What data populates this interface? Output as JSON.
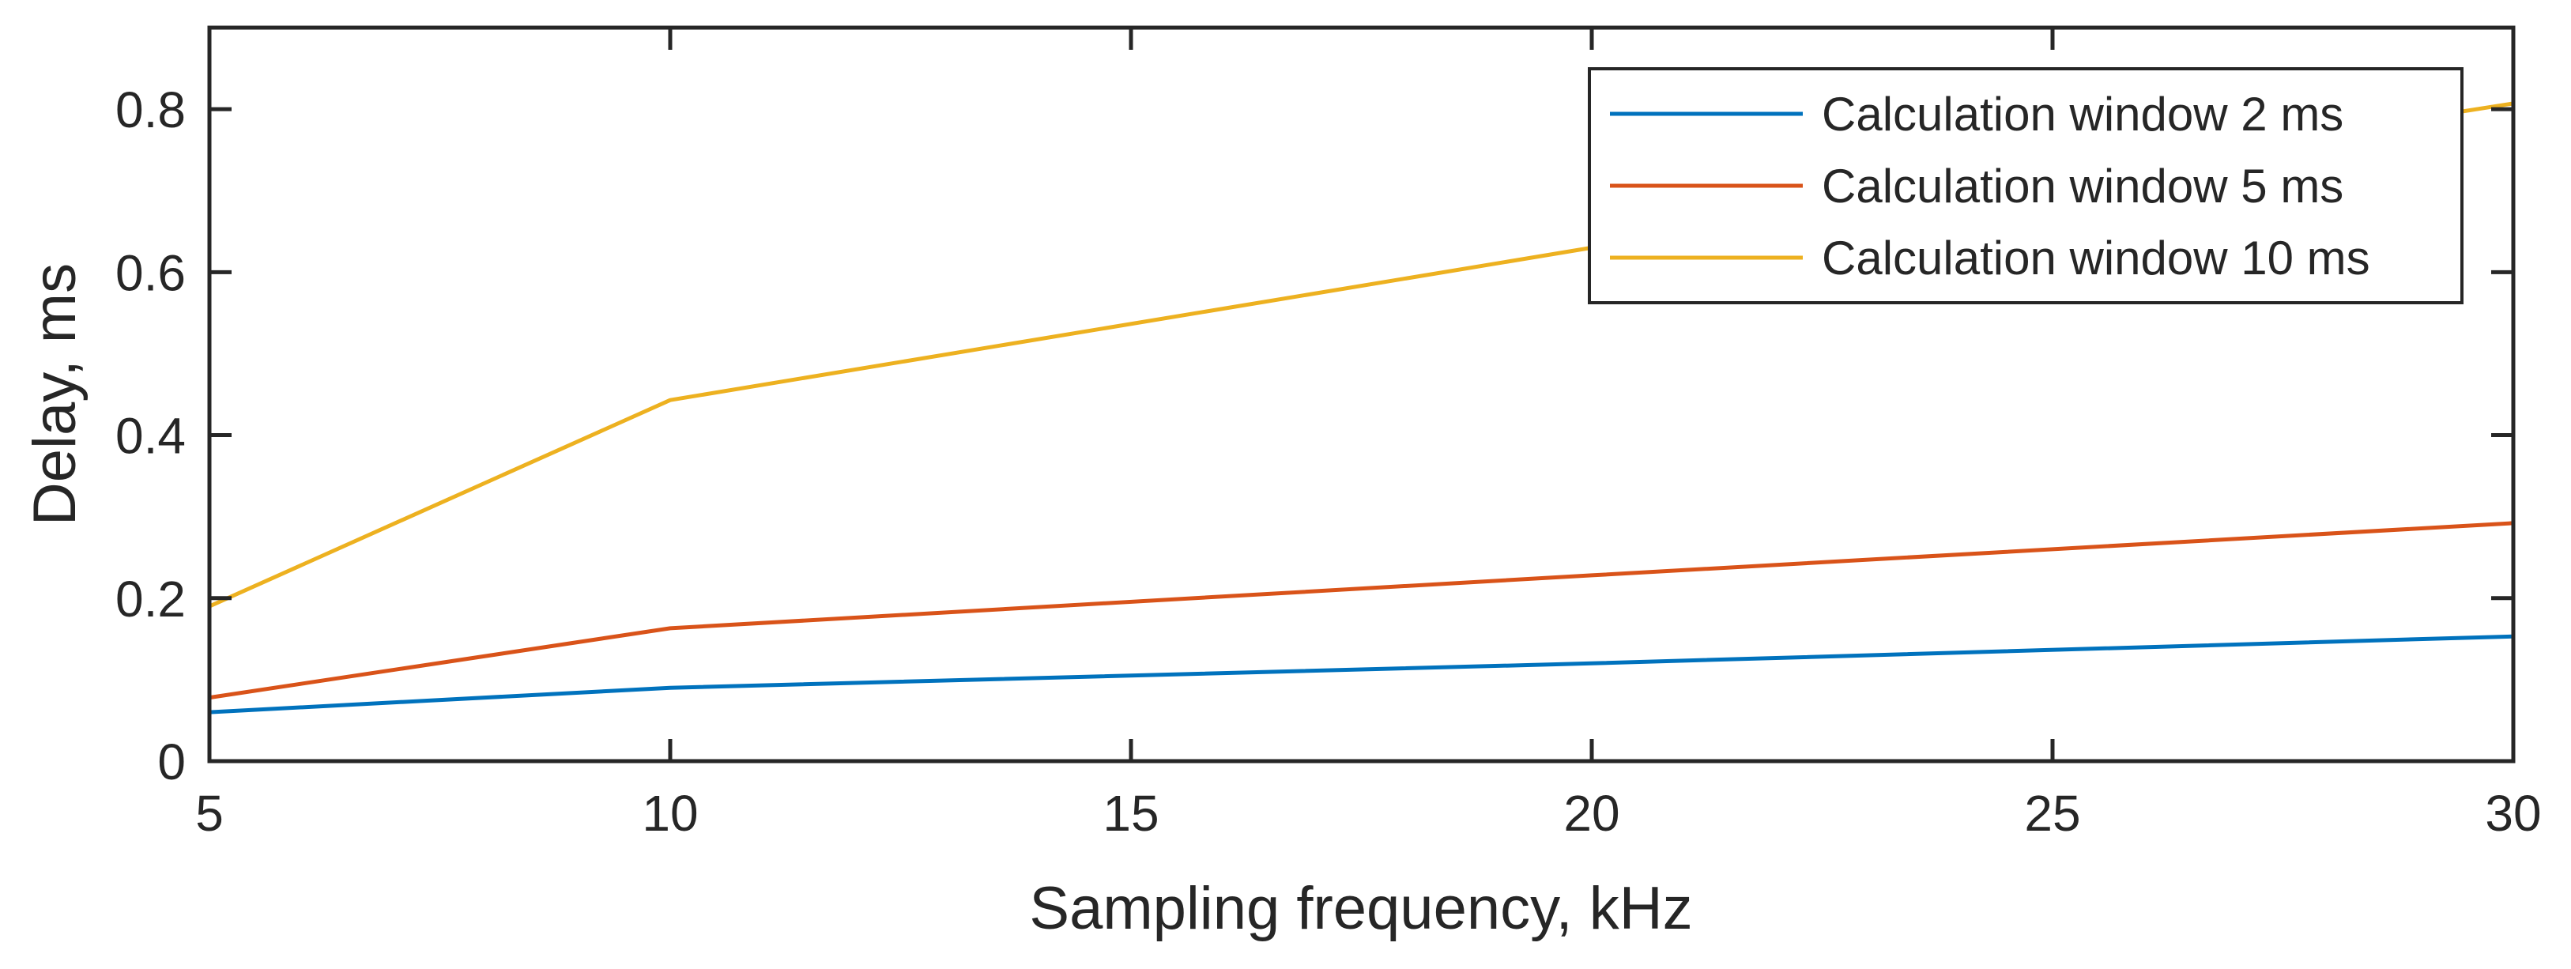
{
  "chart_data": {
    "type": "line",
    "title": "",
    "xlabel": "Sampling frequency, kHz",
    "ylabel": "Delay, ms",
    "xlim": [
      5,
      30
    ],
    "ylim": [
      0,
      0.9
    ],
    "xticks": [
      5,
      10,
      15,
      20,
      25,
      30
    ],
    "xtick_labels": [
      "5",
      "10",
      "15",
      "20",
      "25",
      "30"
    ],
    "yticks": [
      0,
      0.2,
      0.4,
      0.6,
      0.8
    ],
    "ytick_labels": [
      "0",
      "0.2",
      "0.4",
      "0.6",
      "0.8"
    ],
    "grid": false,
    "legend_position": "top-right",
    "x": [
      5,
      10,
      20,
      30
    ],
    "series": [
      {
        "name": "Calculation window 2 ms",
        "color": "#0072BD",
        "values": [
          0.06,
          0.09,
          0.12,
          0.153
        ]
      },
      {
        "name": "Calculation window 5 ms",
        "color": "#D95319",
        "values": [
          0.078,
          0.163,
          0.228,
          0.292
        ]
      },
      {
        "name": "Calculation window 10 ms",
        "color": "#EDB120",
        "values": [
          0.19,
          0.443,
          0.63,
          0.807
        ]
      }
    ]
  }
}
